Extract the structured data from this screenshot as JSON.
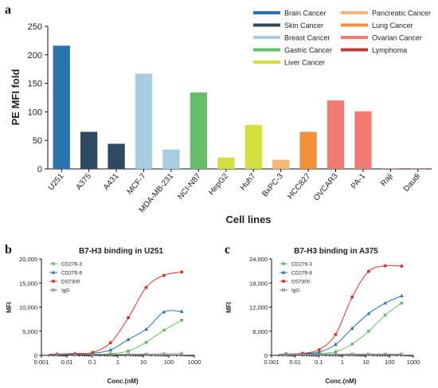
{
  "panels": {
    "a": "a",
    "b": "b",
    "c": "c"
  },
  "chart_data": [
    {
      "type": "bar",
      "panel": "a",
      "title": "",
      "xlabel": "Cell lines",
      "ylabel": "PE MFI fold",
      "ylim": [
        0,
        250
      ],
      "yticks": [
        "0",
        "50",
        "100",
        "150",
        "200",
        "250"
      ],
      "categories": [
        "U251",
        "A375",
        "A431",
        "MCF-7",
        "MDA-MB-231",
        "NCI-N87",
        "HepG2",
        "Huh7",
        "BxPC-3",
        "HCC827",
        "OVCAR3",
        "PA-1",
        "Raji",
        "Daudi"
      ],
      "values": [
        216,
        65,
        44,
        167,
        34,
        134,
        20,
        77,
        16,
        65,
        120,
        101,
        0.6,
        0.4
      ],
      "bar_colors": [
        "#2b73ac",
        "#2e4a63",
        "#2e4a63",
        "#a8cde0",
        "#a8cde0",
        "#66bd6a",
        "#d2df3e",
        "#d2df3e",
        "#f6b677",
        "#f1913a",
        "#f47b72",
        "#f47b72",
        "#c13a3a",
        "#c13a3a"
      ],
      "legend": [
        {
          "label": "Brain Cancer",
          "color": "#2b73ac"
        },
        {
          "label": "Skin Cancer",
          "color": "#2e4a63"
        },
        {
          "label": "Breast Cancer",
          "color": "#a8cde0"
        },
        {
          "label": "Gastric Cancer",
          "color": "#66bd6a"
        },
        {
          "label": "Liver Cancer",
          "color": "#d2df3e"
        },
        {
          "label": "Pancreatic Cancer",
          "color": "#f6b677"
        },
        {
          "label": "Lung Cancer",
          "color": "#f1913a"
        },
        {
          "label": "Ovarian Cancer",
          "color": "#f47b72"
        },
        {
          "label": "Lymphoma",
          "color": "#c13a3a"
        }
      ],
      "legend_placement": "top-right",
      "grid": false
    },
    {
      "type": "scatter",
      "panel": "b",
      "title": "B7-H3 binding in U251",
      "xlabel": "Conc.(nM)",
      "ylabel": "MFI",
      "xscale": "log",
      "xlim": [
        0.001,
        1000
      ],
      "xticks": [
        "0.001",
        "0.01",
        "0.1",
        "1",
        "10",
        "100",
        "1000"
      ],
      "ylim": [
        0,
        20000
      ],
      "yticks": [
        "0",
        "5,000",
        "10,000",
        "15,000",
        "20,000"
      ],
      "x": [
        0.0041,
        0.0206,
        0.103,
        0.514,
        2.57,
        12.86,
        64.3,
        321.5
      ],
      "series": [
        {
          "name": "CD276-3",
          "color": "#66bd6a",
          "marker": "square",
          "values": [
            150,
            180,
            200,
            320,
            900,
            2700,
            5200,
            7300
          ]
        },
        {
          "name": "CD276-8",
          "color": "#2b73ac",
          "marker": "triangle",
          "values": [
            250,
            400,
            450,
            1100,
            3300,
            5400,
            9000,
            9100
          ]
        },
        {
          "name": "DS7300",
          "color": "#d9342b",
          "marker": "circle",
          "values": [
            200,
            300,
            600,
            2600,
            7800,
            14100,
            16600,
            17300
          ]
        },
        {
          "name": "IgG",
          "color": "#888888",
          "marker": "cross",
          "values": [
            150,
            160,
            170,
            180,
            200,
            250,
            300,
            350
          ]
        }
      ],
      "legend_placement": "top-left",
      "grid": false
    },
    {
      "type": "scatter",
      "panel": "c",
      "title": "B7-H3 binding in A375",
      "xlabel": "Conc.(nM)",
      "ylabel": "MFI",
      "xscale": "log",
      "xlim": [
        0.001,
        1000
      ],
      "xticks": [
        "0.001",
        "0.01",
        "0.1",
        "1",
        "10",
        "100",
        "1000"
      ],
      "ylim": [
        0,
        24000
      ],
      "yticks": [
        "0",
        "6,000",
        "12,000",
        "18,000",
        "24,000"
      ],
      "x": [
        0.0041,
        0.0206,
        0.103,
        0.514,
        2.57,
        12.86,
        64.3,
        321.5
      ],
      "series": [
        {
          "name": "CD276-3",
          "color": "#66bd6a",
          "marker": "square",
          "values": [
            300,
            400,
            500,
            900,
            2800,
            6000,
            10000,
            13000
          ]
        },
        {
          "name": "CD276-8",
          "color": "#2b73ac",
          "marker": "triangle",
          "values": [
            300,
            450,
            800,
            2700,
            6700,
            10400,
            13000,
            14800
          ]
        },
        {
          "name": "DS7300",
          "color": "#d9342b",
          "marker": "circle",
          "values": [
            300,
            500,
            1400,
            5200,
            14500,
            20900,
            22300,
            22200
          ]
        },
        {
          "name": "IgG",
          "color": "#888888",
          "marker": "cross",
          "values": [
            300,
            300,
            300,
            300,
            300,
            300,
            300,
            300
          ]
        }
      ],
      "legend_placement": "top-left",
      "grid": false
    }
  ]
}
